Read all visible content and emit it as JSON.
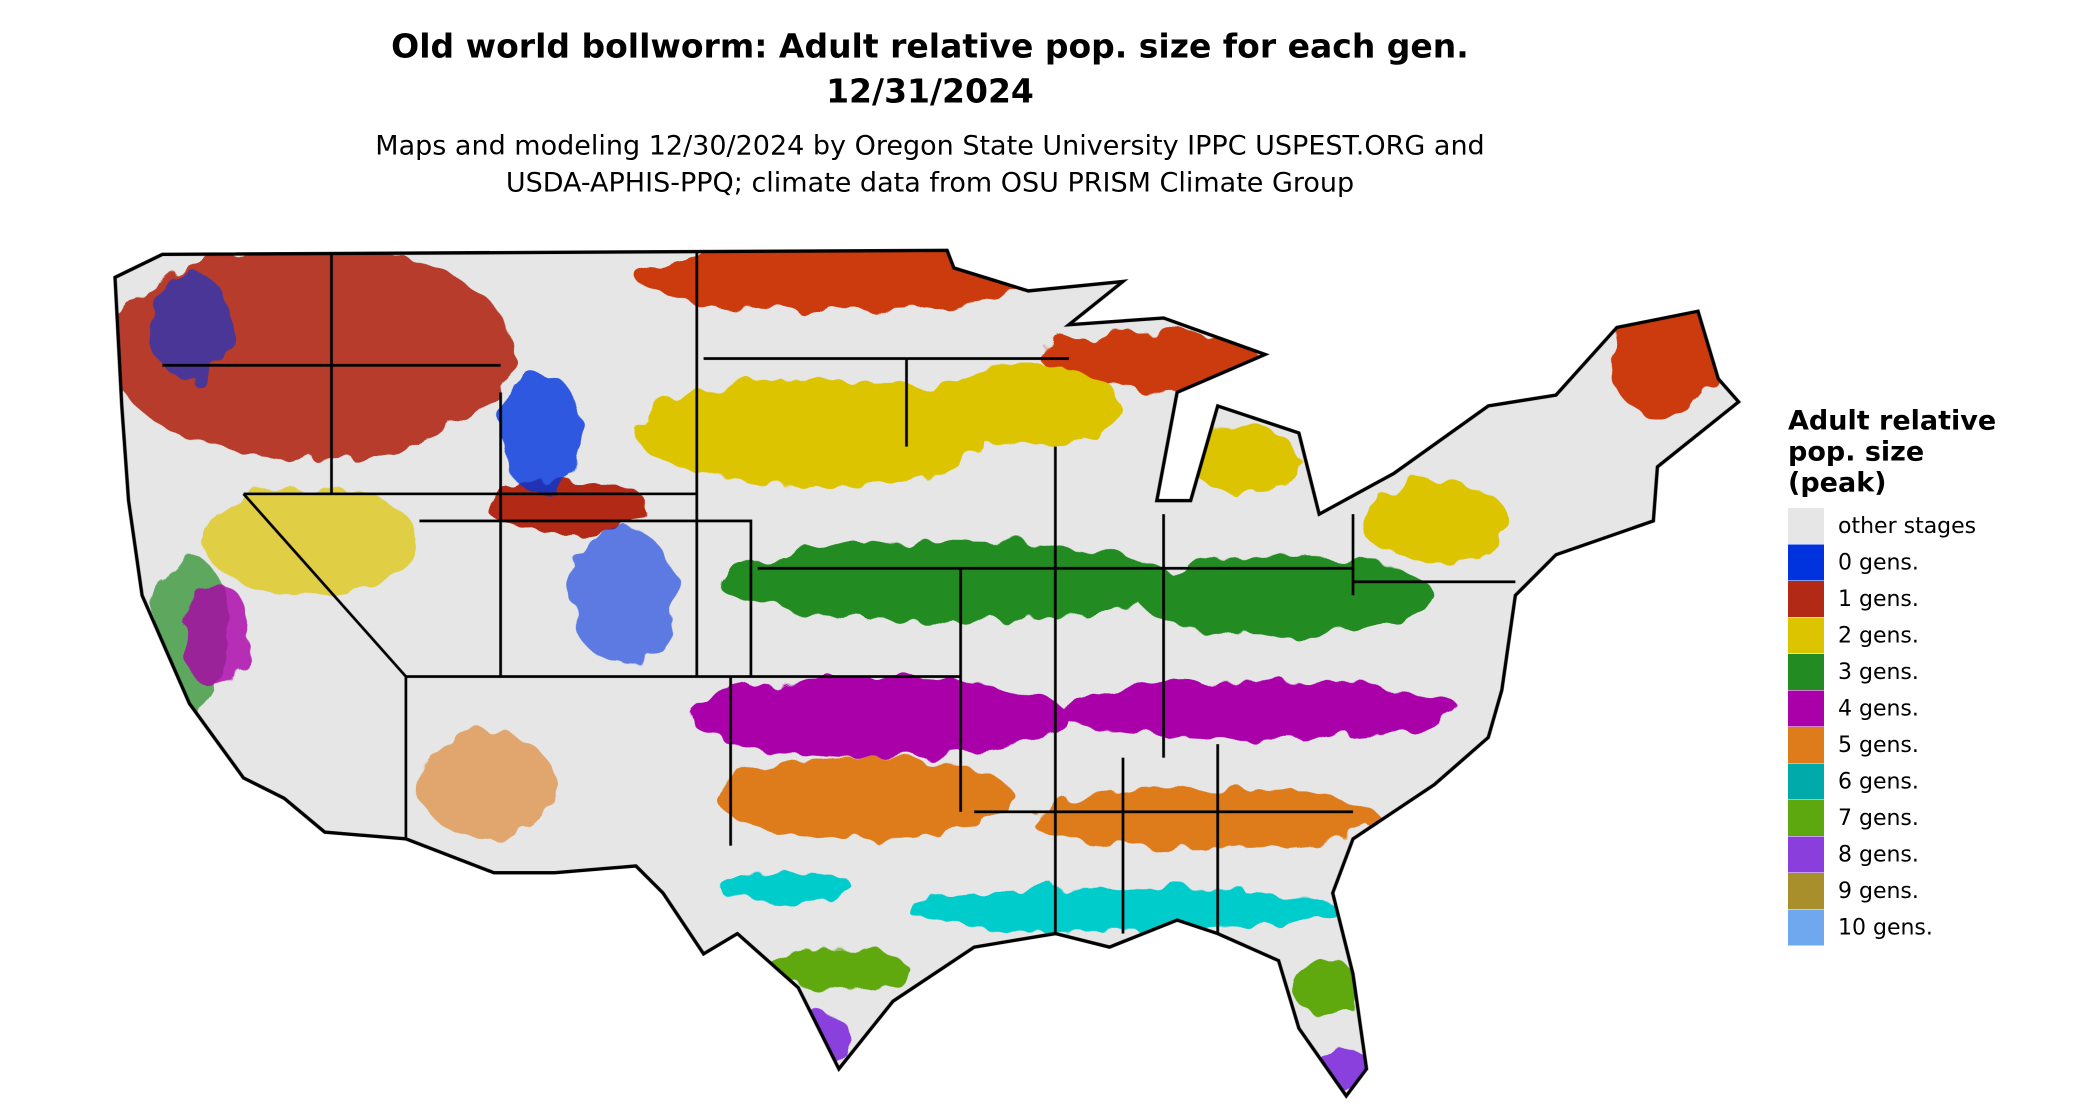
{
  "title": [
    "Old world bollworm: Adult relative pop. size for each gen.",
    "12/31/2024"
  ],
  "subtitle": [
    "Maps and modeling 12/30/2024 by Oregon State University IPPC USPEST.ORG and",
    "USDA-APHIS-PPQ; climate data from OSU PRISM Climate Group"
  ],
  "legend": {
    "title": [
      "Adult relative",
      "pop. size",
      "(peak)"
    ],
    "items": [
      {
        "label": "other stages",
        "color": "#e6e6e6"
      },
      {
        "label": "0 gens.",
        "color": "#0033dd"
      },
      {
        "label": "1 gens.",
        "color": "#b22a16"
      },
      {
        "label": "2 gens.",
        "color": "#ddc400"
      },
      {
        "label": "3 gens.",
        "color": "#228b22"
      },
      {
        "label": "4 gens.",
        "color": "#aa00aa"
      },
      {
        "label": "5 gens.",
        "color": "#de7b1b"
      },
      {
        "label": "6 gens.",
        "color": "#00aaaa"
      },
      {
        "label": "7 gens.",
        "color": "#5ea80f"
      },
      {
        "label": "8 gens.",
        "color": "#8a3fdd"
      },
      {
        "label": "9 gens.",
        "color": "#a88f2b"
      },
      {
        "label": "10 gens.",
        "color": "#6fa8ee"
      }
    ]
  }
}
